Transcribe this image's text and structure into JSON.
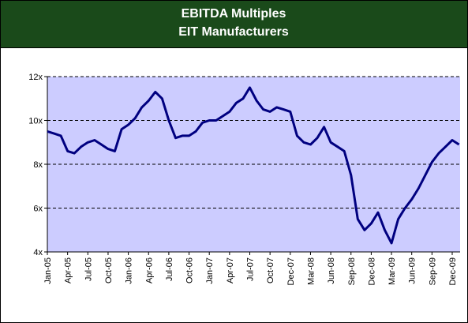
{
  "chart_data": {
    "type": "line",
    "title": "EBITDA Multiples",
    "subtitle": "EIT Manufacturers",
    "categories": [
      "Jan-05",
      null,
      null,
      "Apr-05",
      null,
      null,
      "Jul-05",
      null,
      null,
      "Oct-05",
      null,
      null,
      "Jan-06",
      null,
      null,
      "Apr-06",
      null,
      null,
      "Jul-06",
      null,
      null,
      "Oct-06",
      null,
      null,
      "Jan-07",
      null,
      null,
      "Apr-07",
      null,
      null,
      "Jul-07",
      null,
      null,
      "Oct-07",
      null,
      null,
      "Dec-07",
      null,
      null,
      "Mar-08",
      null,
      null,
      "Jun-08",
      null,
      null,
      "Sep-08",
      null,
      null,
      "Dec-08",
      null,
      null,
      "Mar-09",
      null,
      null,
      "Jun-09",
      null,
      null,
      "Sep-09",
      null,
      null,
      "Dec-09",
      null
    ],
    "series": [
      {
        "color": "#000080",
        "values": [
          9.5,
          9.4,
          9.3,
          8.6,
          8.5,
          8.8,
          9.0,
          9.1,
          8.9,
          8.7,
          8.6,
          9.6,
          9.8,
          10.1,
          10.6,
          10.9,
          11.3,
          11.0,
          10.0,
          9.2,
          9.3,
          9.3,
          9.5,
          9.9,
          10.0,
          10.0,
          10.2,
          10.4,
          10.8,
          11.0,
          11.5,
          10.9,
          10.5,
          10.4,
          10.6,
          10.5,
          10.4,
          9.3,
          9.0,
          8.9,
          9.2,
          9.7,
          9.0,
          8.8,
          8.6,
          7.5,
          5.5,
          5.0,
          5.3,
          5.8,
          5.0,
          4.4,
          5.5,
          6.0,
          6.4,
          6.9,
          7.5,
          8.1,
          8.5,
          8.8,
          9.1,
          8.9
        ]
      }
    ],
    "ylim": [
      4,
      12
    ],
    "yticks": [
      {
        "value": 4,
        "label": "4x"
      },
      {
        "value": 6,
        "label": "6x"
      },
      {
        "value": 8,
        "label": "8x"
      },
      {
        "value": 10,
        "label": "10x"
      },
      {
        "value": 12,
        "label": "12x"
      }
    ],
    "grid": true,
    "plot_background": "#ccccff"
  }
}
